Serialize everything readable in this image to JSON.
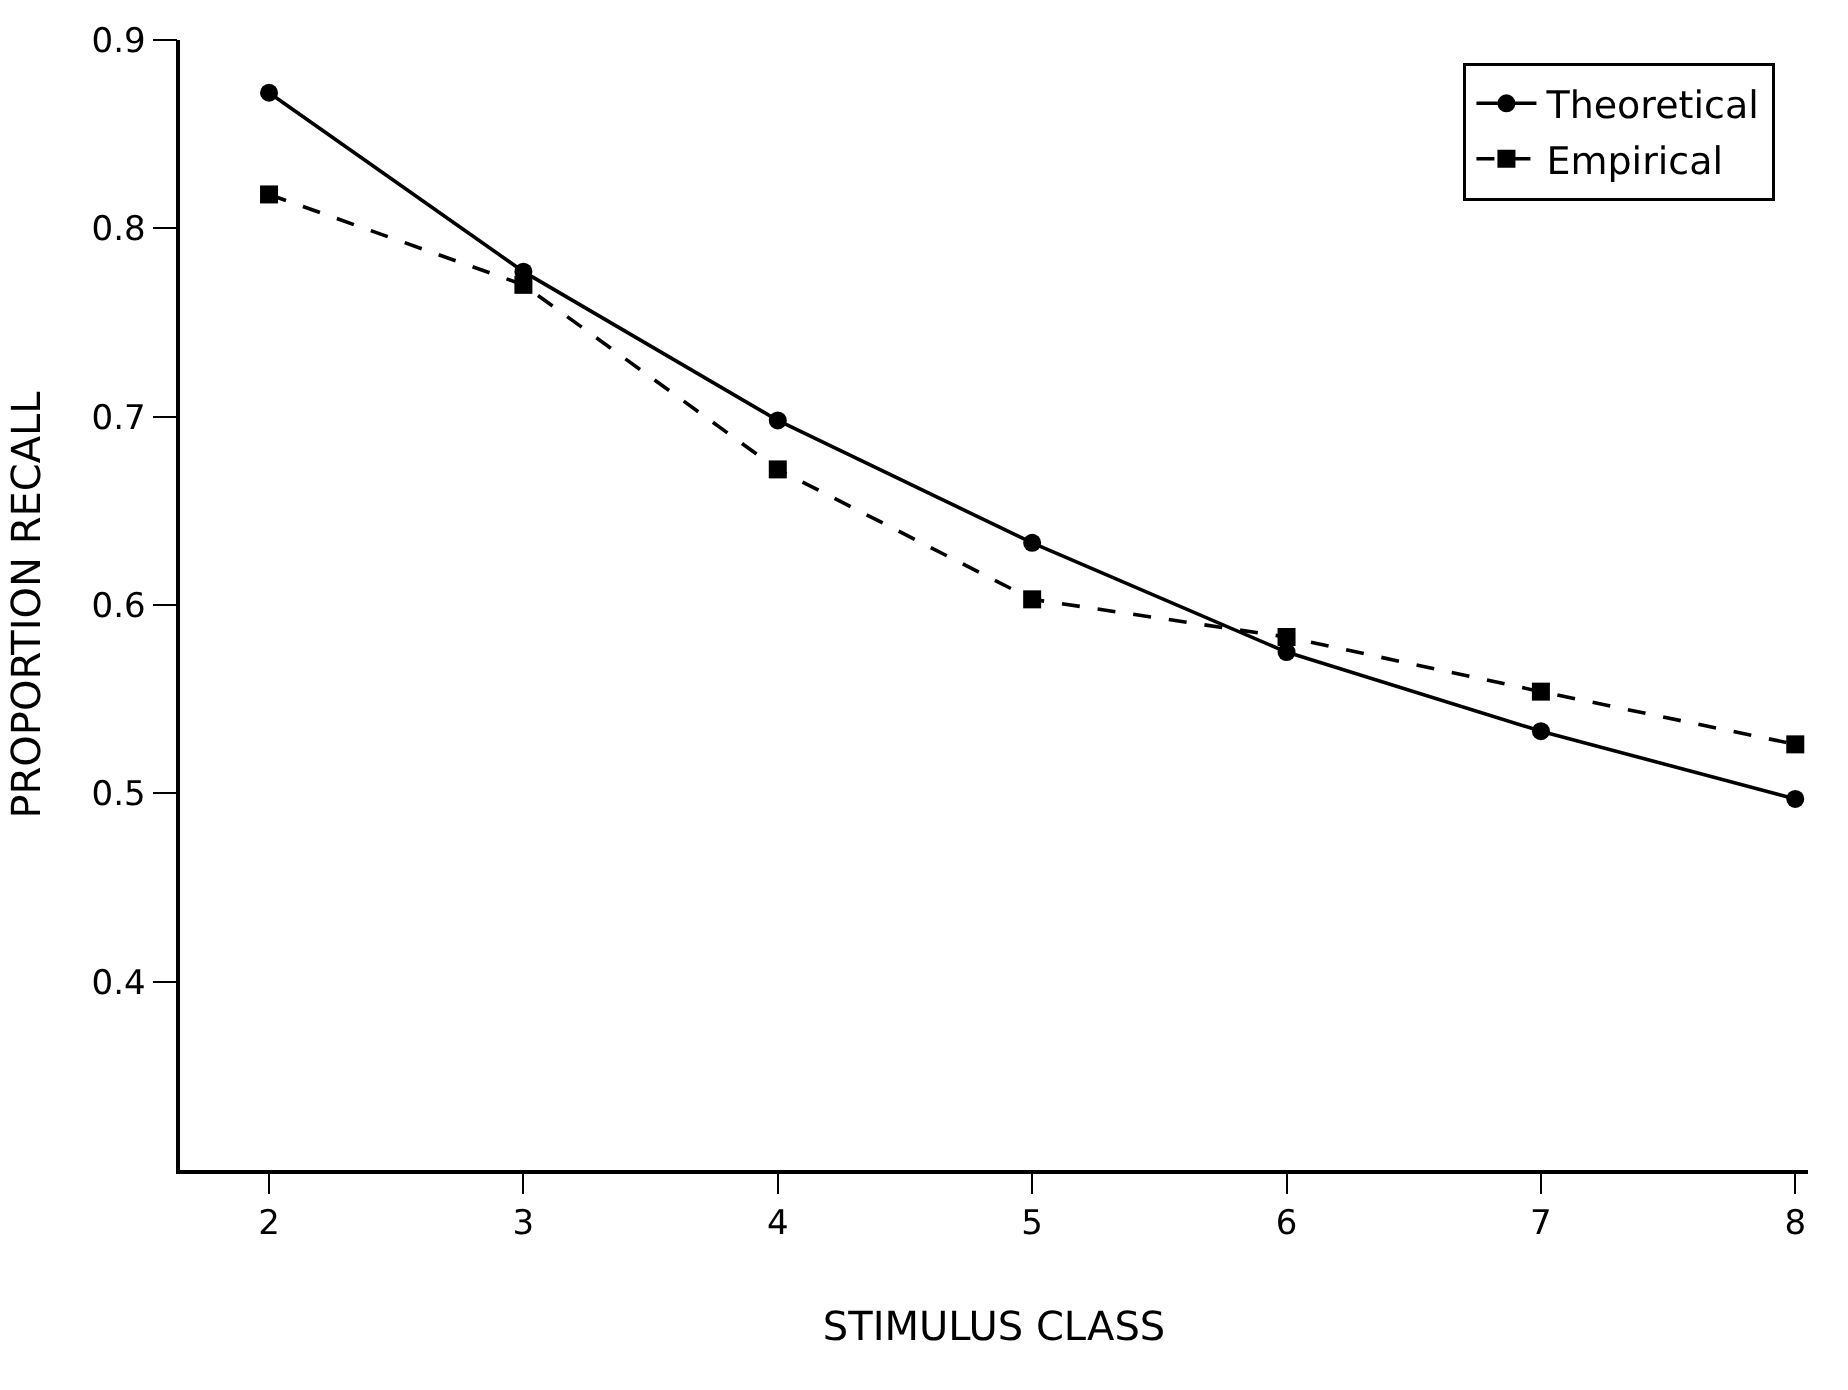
{
  "chart_data": {
    "type": "line",
    "xlabel": "STIMULUS CLASS",
    "ylabel": "PROPORTION RECALL",
    "x": [
      2,
      3,
      4,
      5,
      6,
      7,
      8
    ],
    "series": [
      {
        "name": "Theoretical",
        "color": "#000000",
        "values": [
          0.872,
          0.777,
          0.698,
          0.633,
          0.575,
          0.533,
          0.497
        ],
        "marker": "circle",
        "line_style": "solid"
      },
      {
        "name": "Empirical",
        "color": "#000000",
        "values": [
          0.818,
          0.77,
          0.672,
          0.603,
          0.583,
          0.554,
          0.526
        ],
        "marker": "square",
        "line_style": "dashed"
      }
    ],
    "xlim": [
      1.65,
      8.05
    ],
    "xticks": [
      2,
      3,
      4,
      5,
      6,
      7,
      8
    ],
    "ylim": [
      0.3,
      0.9
    ],
    "yticks": [
      0.4,
      0.5,
      0.6,
      0.7,
      0.8,
      0.9
    ],
    "legend": "top right"
  }
}
